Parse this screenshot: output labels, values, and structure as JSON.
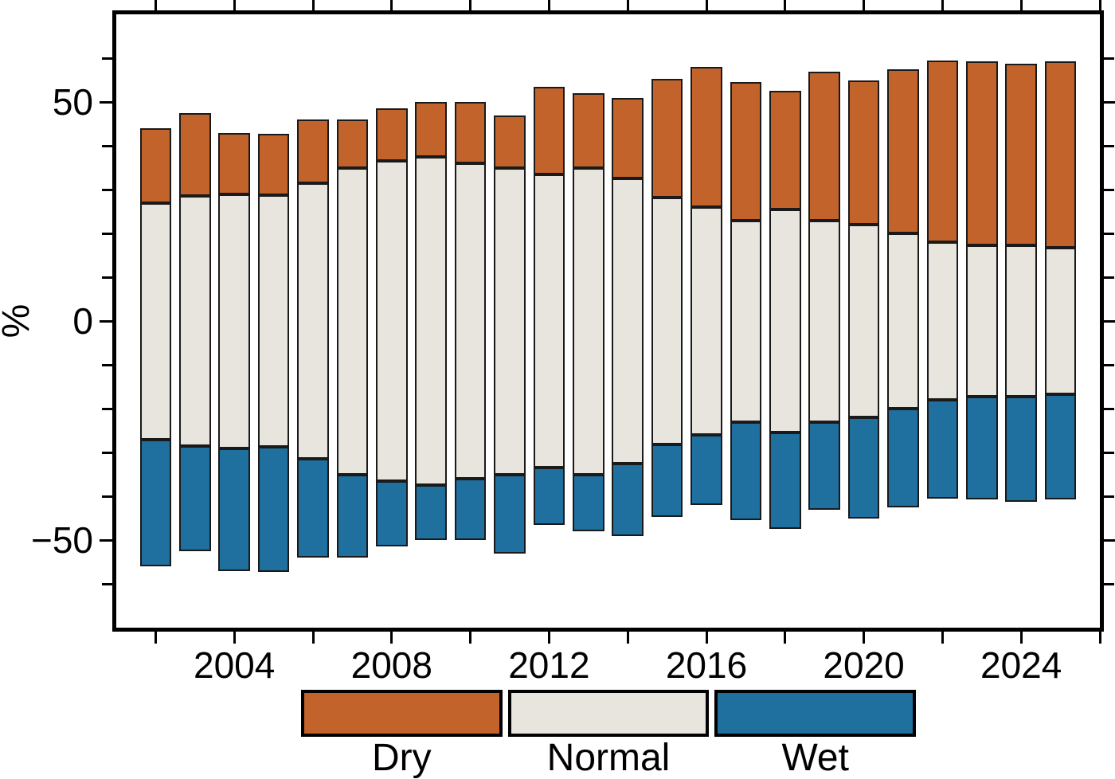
{
  "figure": {
    "background": "#ffffff",
    "frame_color": "#000000",
    "bar_outline_color": "#1a1a1a"
  },
  "chart_data": {
    "type": "bar",
    "subtype": "stacked-diverging",
    "description": "Percentage of Dry / Normal / Wet conditions per year; Normal band centered on 0",
    "title": "",
    "xlabel": "",
    "ylabel": "%",
    "legend_position": "bottom",
    "grid": false,
    "categories": [
      2002,
      2003,
      2004,
      2005,
      2006,
      2007,
      2008,
      2009,
      2010,
      2011,
      2012,
      2013,
      2014,
      2015,
      2016,
      2017,
      2018,
      2019,
      2020,
      2021,
      2022,
      2023,
      2024,
      2025
    ],
    "series": [
      {
        "name": "Dry",
        "color": "#c2632c",
        "values": [
          17,
          19,
          14,
          14,
          14.5,
          11,
          12,
          12.5,
          14,
          12,
          20,
          17,
          18.5,
          27,
          32,
          31.5,
          27,
          34,
          33,
          37.5,
          41.5,
          42,
          41.5,
          42.5
        ]
      },
      {
        "name": "Normal",
        "color": "#e8e4de",
        "values": [
          54,
          57,
          58,
          57.5,
          63,
          70,
          73,
          75,
          72,
          70,
          67,
          70,
          65,
          56.5,
          52,
          46,
          51,
          46,
          44,
          40,
          36,
          34.5,
          34.5,
          33.5
        ]
      },
      {
        "name": "Wet",
        "color": "#1f6f9f",
        "values": [
          29,
          24,
          28,
          28.5,
          22.5,
          19,
          15,
          12.5,
          14,
          18,
          13,
          13,
          16.5,
          16.5,
          16,
          22.5,
          22,
          20,
          23,
          22.5,
          22.5,
          23.5,
          24,
          24
        ]
      }
    ],
    "bar_width_years": 0.8,
    "y_axis": {
      "label": "%",
      "min": -70,
      "max": 70,
      "minor_tick_step": 10,
      "major_ticks": [
        {
          "value": 50,
          "label": "50"
        },
        {
          "value": 0,
          "label": "0"
        },
        {
          "value": -50,
          "label": "−50"
        }
      ]
    },
    "x_axis": {
      "min": 2001,
      "max": 2026,
      "tick_start": 2002,
      "tick_end": 2026,
      "tick_step": 2,
      "labeled_ticks": [
        {
          "value": 2004,
          "label": "2004"
        },
        {
          "value": 2008,
          "label": "2008"
        },
        {
          "value": 2012,
          "label": "2012"
        },
        {
          "value": 2016,
          "label": "2016"
        },
        {
          "value": 2020,
          "label": "2020"
        },
        {
          "value": 2024,
          "label": "2024"
        }
      ]
    },
    "legend": [
      {
        "label": "Dry",
        "color": "#c2632c"
      },
      {
        "label": "Normal",
        "color": "#e8e4de"
      },
      {
        "label": "Wet",
        "color": "#1f6f9f"
      }
    ]
  }
}
